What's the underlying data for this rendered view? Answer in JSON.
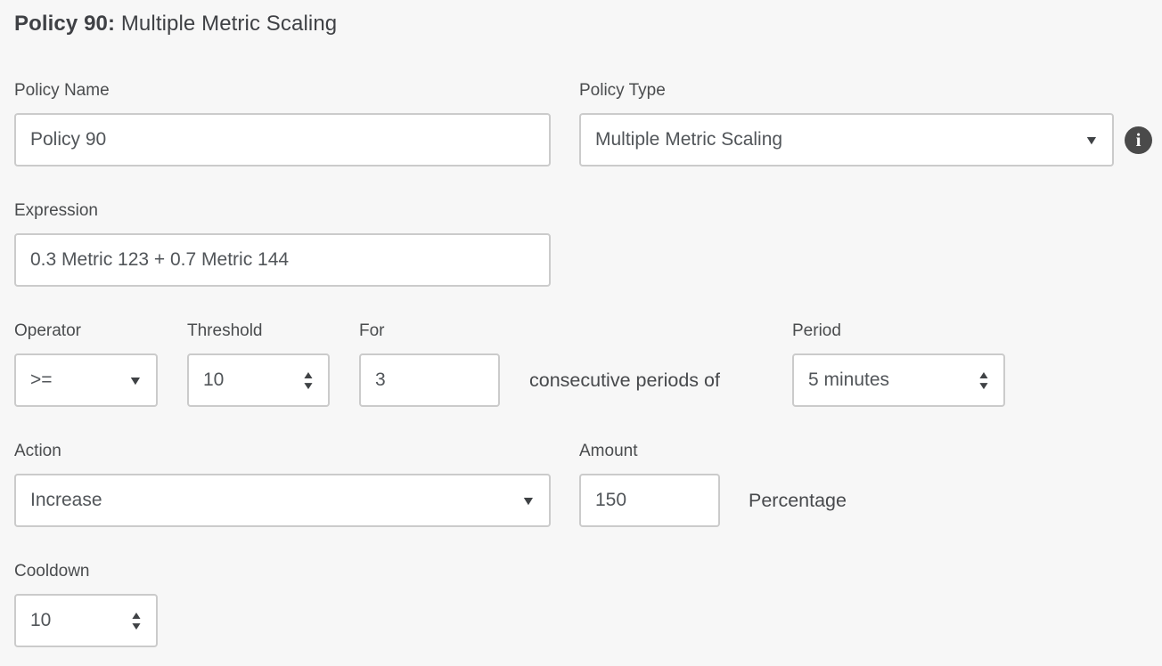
{
  "title": {
    "bold": "Policy 90:",
    "regular": "Multiple Metric Scaling"
  },
  "fields": {
    "policy_name": {
      "label": "Policy Name",
      "value": "Policy 90"
    },
    "policy_type": {
      "label": "Policy Type",
      "value": "Multiple Metric Scaling"
    },
    "expression": {
      "label": "Expression",
      "value": "0.3 Metric 123 + 0.7 Metric 144"
    },
    "operator": {
      "label": "Operator",
      "value": ">="
    },
    "threshold": {
      "label": "Threshold",
      "value": "10"
    },
    "for": {
      "label": "For",
      "value": "3"
    },
    "period": {
      "label": "Period",
      "value": "5 minutes"
    },
    "action": {
      "label": "Action",
      "value": "Increase"
    },
    "amount": {
      "label": "Amount",
      "value": "150"
    },
    "cooldown": {
      "label": "Cooldown",
      "value": "10"
    }
  },
  "static_text": {
    "consecutive": "consecutive periods of",
    "percentage": "Percentage"
  },
  "icons": {
    "chevron_down": "▼",
    "stepper_up": "▲",
    "stepper_down": "▼",
    "info": "i"
  },
  "colors": {
    "page_background": "#f7f7f7",
    "input_background": "#ffffff",
    "input_border": "#cbcbcb",
    "text": "#4a4c4e",
    "info_icon_background": "#4a4a4a",
    "info_icon_glyph": "#ffffff"
  }
}
